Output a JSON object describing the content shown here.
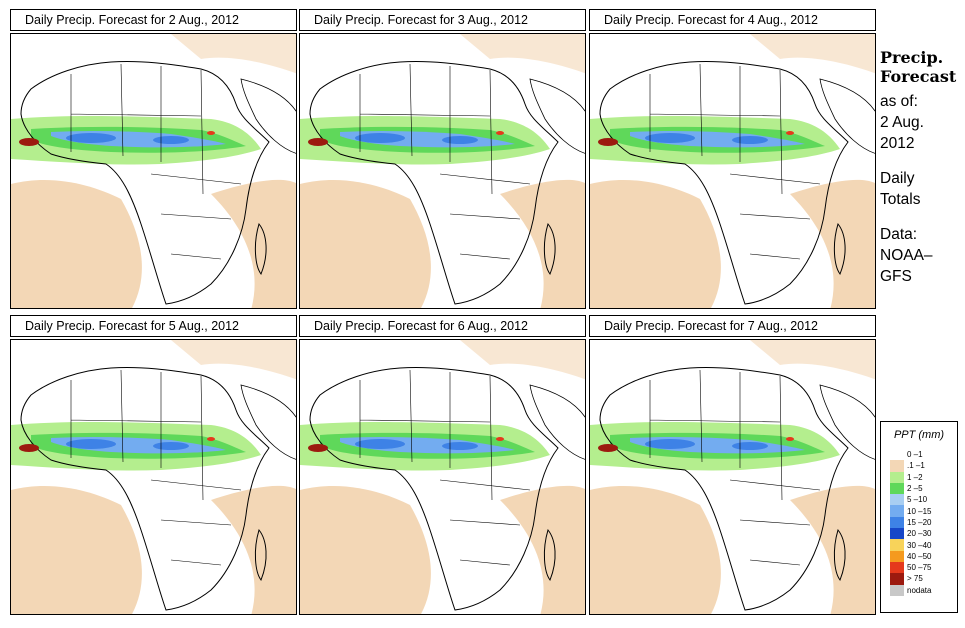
{
  "panels": [
    {
      "title": "Daily Precip. Forecast for  2 Aug., 2012"
    },
    {
      "title": "Daily Precip. Forecast for  3 Aug., 2012"
    },
    {
      "title": "Daily Precip. Forecast for  4 Aug., 2012"
    },
    {
      "title": "Daily Precip. Forecast for  5 Aug., 2012"
    },
    {
      "title": "Daily Precip. Forecast for  6 Aug., 2012"
    },
    {
      "title": "Daily Precip. Forecast for  7 Aug., 2012"
    }
  ],
  "side": {
    "title_line1": "Precip.",
    "title_line2": "Forecast",
    "asof_line1": "as of:",
    "asof_line2": "2 Aug.",
    "asof_line3": "2012",
    "daily_line1": "Daily",
    "daily_line2": "Totals",
    "data_line1": "Data:",
    "data_line2": "NOAA–",
    "data_line3": "GFS"
  },
  "legend": {
    "title": "PPT (mm)",
    "items": [
      {
        "label": "0 –1",
        "color": "#ffffff"
      },
      {
        "label": ".1 –1",
        "color": "#f3d7b6"
      },
      {
        "label": "1 –2",
        "color": "#b4ee8e"
      },
      {
        "label": "2 –5",
        "color": "#5fd85a"
      },
      {
        "label": "5 –10",
        "color": "#a8cef2"
      },
      {
        "label": "10 –15",
        "color": "#73acf0"
      },
      {
        "label": "15 –20",
        "color": "#3e82e6"
      },
      {
        "label": "20 –30",
        "color": "#1646c8"
      },
      {
        "label": "30 –40",
        "color": "#f8d35a"
      },
      {
        "label": "40 –50",
        "color": "#f59a1e"
      },
      {
        "label": "50 –75",
        "color": "#e5391c"
      },
      {
        "label": "> 75",
        "color": "#9c1a0f"
      },
      {
        "label": "nodata",
        "color": "#c8c8c8"
      }
    ]
  }
}
